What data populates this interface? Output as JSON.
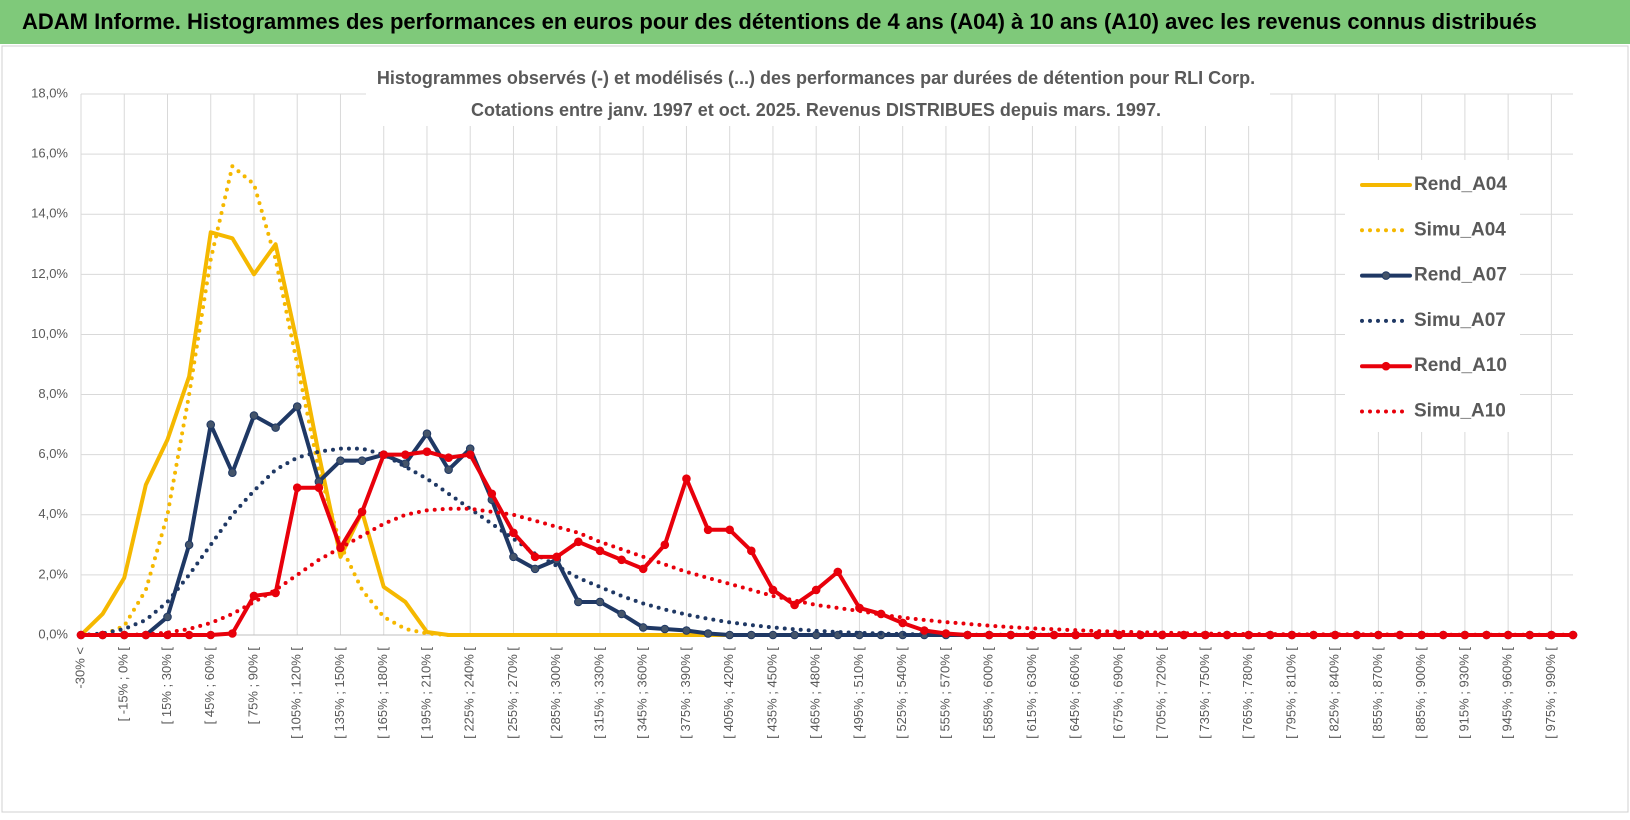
{
  "chart_data": {
    "type": "line",
    "title": "ADAM Informe. Histogrammes des performances en euros pour des détentions de 4 ans (A04) à 10 ans (A10) avec les revenus connus distribués",
    "subtitle": [
      "Histogrammes observés (-) et modélisés (...) des performances par durées de détention pour RLI Corp.",
      "Cotations entre janv. 1997 et oct. 2025.  Revenus DISTRIBUES depuis mars. 1997."
    ],
    "categories": [
      "-30% <",
      null,
      "[ -15% ; 0% [",
      null,
      "[ 15% ; 30% [",
      null,
      "[ 45% ; 60% [",
      null,
      "[ 75% ; 90% [",
      null,
      "[ 105% ; 120% [",
      null,
      "[ 135% ; 150% [",
      null,
      "[ 165% ; 180% [",
      null,
      "[ 195% ; 210% [",
      null,
      "[ 225% ; 240% [",
      null,
      "[ 255% ; 270% [",
      null,
      "[ 285% ; 300% [",
      null,
      "[ 315% ; 330% [",
      null,
      "[ 345% ; 360% [",
      null,
      "[ 375% ; 390% [",
      null,
      "[ 405% ; 420% [",
      null,
      "[ 435% ; 450% [",
      null,
      "[ 465% ; 480% [",
      null,
      "[ 495% ; 510% [",
      null,
      "[ 525% ; 540% [",
      null,
      "[ 555% ; 570% [",
      null,
      "[ 585% ; 600% [",
      null,
      "[ 615% ; 630% [",
      null,
      "[ 645% ; 660% [",
      null,
      "[ 675% ; 690% [",
      null,
      "[ 705% ; 720% [",
      null,
      "[ 735% ; 750% [",
      null,
      "[ 765% ; 780% [",
      null,
      "[ 795% ; 810% [",
      null,
      "[ 825% ; 840% [",
      null,
      "[ 855% ; 870% [",
      null,
      "[ 885% ; 900% [",
      null,
      "[ 915% ; 930% [",
      null,
      "[ 945% ; 960% [",
      null,
      "[ 975% ; 990% [",
      null
    ],
    "ylim": [
      0,
      18
    ],
    "yticks": [
      {
        "value": 0,
        "label": "0,0%"
      },
      {
        "value": 2,
        "label": "2,0%"
      },
      {
        "value": 4,
        "label": "4,0%"
      },
      {
        "value": 6,
        "label": "6,0%"
      },
      {
        "value": 8,
        "label": "8,0%"
      },
      {
        "value": 10,
        "label": "10,0%"
      },
      {
        "value": 12,
        "label": "12,0%"
      },
      {
        "value": 14,
        "label": "14,0%"
      },
      {
        "value": 16,
        "label": "16,0%"
      },
      {
        "value": 18,
        "label": "18,0%"
      }
    ],
    "grid": true,
    "legend": "right",
    "series": [
      {
        "name": "Rend_A04",
        "color": "#f5b800",
        "style": "solid",
        "markers": false,
        "values": [
          0,
          0.7,
          1.9,
          5.0,
          6.5,
          8.6,
          13.4,
          13.2,
          12.0,
          13.0,
          9.7,
          6.0,
          2.6,
          4.1,
          1.6,
          1.1,
          0.1,
          0,
          0,
          0,
          0,
          0,
          0,
          0,
          0,
          0,
          0,
          0,
          0,
          0,
          0,
          0,
          0,
          0,
          0,
          0,
          0,
          0,
          0,
          0,
          0,
          0,
          0,
          0,
          0,
          0,
          0,
          0,
          0,
          0,
          0,
          0,
          0,
          0,
          0,
          0,
          0,
          0,
          0,
          0,
          0,
          0,
          0,
          0,
          0,
          0,
          0,
          0,
          0,
          0
        ]
      },
      {
        "name": "Simu_A04",
        "color": "#f5b800",
        "style": "dotted",
        "markers": false,
        "values": [
          0,
          0,
          0.3,
          1.5,
          4.0,
          8.0,
          12.5,
          15.6,
          15.0,
          12.5,
          9.0,
          5.5,
          3.0,
          1.5,
          0.6,
          0.2,
          0.05,
          0,
          0,
          0,
          0,
          0,
          0,
          0,
          0,
          0,
          0,
          0,
          0,
          0,
          0,
          0,
          0,
          0,
          0,
          0,
          0,
          0,
          0,
          0,
          0,
          0,
          0,
          0,
          0,
          0,
          0,
          0,
          0,
          0,
          0,
          0,
          0,
          0,
          0,
          0,
          0,
          0,
          0,
          0,
          0,
          0,
          0,
          0,
          0,
          0,
          0,
          0,
          0,
          0
        ]
      },
      {
        "name": "Rend_A07",
        "color": "#1f3864",
        "style": "solid",
        "markers": true,
        "values": [
          0,
          0,
          0,
          0,
          0.6,
          3.0,
          7.0,
          5.4,
          7.3,
          6.9,
          7.6,
          5.1,
          5.8,
          5.8,
          6.0,
          5.7,
          6.7,
          5.5,
          6.2,
          4.5,
          2.6,
          2.2,
          2.5,
          1.1,
          1.1,
          0.7,
          0.25,
          0.2,
          0.15,
          0.05,
          0,
          0,
          0,
          0,
          0,
          0,
          0,
          0,
          0,
          0,
          0,
          0,
          0,
          0,
          0,
          0,
          0,
          0,
          0,
          0,
          0,
          0,
          0,
          0,
          0,
          0,
          0,
          0,
          0,
          0,
          0,
          0,
          0,
          0,
          0,
          0,
          0,
          0,
          0,
          0
        ]
      },
      {
        "name": "Simu_A07",
        "color": "#1f3864",
        "style": "dotted",
        "markers": false,
        "values": [
          0,
          0.05,
          0.2,
          0.5,
          1.1,
          2.0,
          3.0,
          4.0,
          4.8,
          5.5,
          5.9,
          6.1,
          6.2,
          6.2,
          6.0,
          5.6,
          5.2,
          4.7,
          4.2,
          3.7,
          3.2,
          2.7,
          2.3,
          1.9,
          1.6,
          1.3,
          1.05,
          0.85,
          0.68,
          0.54,
          0.42,
          0.33,
          0.25,
          0.19,
          0.14,
          0.1,
          0.07,
          0.05,
          0.03,
          0.02,
          0.01,
          0.01,
          0.01,
          0.01,
          0.01,
          0.01,
          0.01,
          0.01,
          0.01,
          0.01,
          0,
          0,
          0,
          0,
          0,
          0,
          0,
          0,
          0,
          0,
          0,
          0,
          0,
          0,
          0,
          0,
          0,
          0,
          0,
          0
        ]
      },
      {
        "name": "Rend_A10",
        "color": "#e8000b",
        "style": "solid",
        "markers": true,
        "values": [
          0,
          0,
          0,
          0,
          0,
          0,
          0,
          0.05,
          1.3,
          1.4,
          4.9,
          4.9,
          2.9,
          4.1,
          6.0,
          6.0,
          6.1,
          5.9,
          6.0,
          4.7,
          3.4,
          2.6,
          2.6,
          3.1,
          2.8,
          2.5,
          2.2,
          3.0,
          5.2,
          3.5,
          3.5,
          2.8,
          1.5,
          1.0,
          1.5,
          2.1,
          0.9,
          0.7,
          0.4,
          0.15,
          0.05,
          0,
          0,
          0,
          0,
          0,
          0,
          0,
          0,
          0,
          0,
          0,
          0,
          0,
          0,
          0,
          0,
          0,
          0,
          0,
          0,
          0,
          0,
          0,
          0,
          0,
          0,
          0,
          0,
          0
        ]
      },
      {
        "name": "Simu_A10",
        "color": "#e8000b",
        "style": "dotted",
        "markers": false,
        "values": [
          0,
          0,
          0,
          0.02,
          0.08,
          0.2,
          0.4,
          0.7,
          1.1,
          1.5,
          2.0,
          2.5,
          2.9,
          3.3,
          3.7,
          4.0,
          4.15,
          4.2,
          4.2,
          4.1,
          4.0,
          3.8,
          3.6,
          3.4,
          3.1,
          2.85,
          2.6,
          2.35,
          2.1,
          1.9,
          1.7,
          1.5,
          1.3,
          1.15,
          1.0,
          0.9,
          0.8,
          0.68,
          0.58,
          0.5,
          0.43,
          0.37,
          0.31,
          0.26,
          0.22,
          0.19,
          0.16,
          0.13,
          0.11,
          0.09,
          0.08,
          0.06,
          0.05,
          0.04,
          0.03,
          0.03,
          0.02,
          0.02,
          0.02,
          0.02,
          0.02,
          0.01,
          0.01,
          0.01,
          0.01,
          0.01,
          0.01,
          0.01,
          0.01,
          0.01
        ]
      }
    ]
  }
}
